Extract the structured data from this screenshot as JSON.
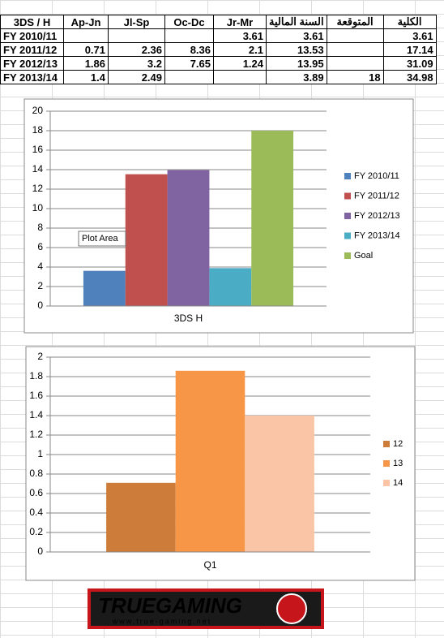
{
  "table": {
    "header": [
      "3DS / H",
      "Ap-Jn",
      "Jl-Sp",
      "Oc-Dc",
      "Jr-Mr",
      "السنة المالية",
      "المتوقعة",
      "الكلية"
    ],
    "rows": [
      [
        "FY 2010/11",
        null,
        null,
        null,
        3.61,
        3.61,
        null,
        3.61
      ],
      [
        "FY 2011/12",
        0.71,
        2.36,
        8.36,
        2.1,
        13.53,
        null,
        17.14
      ],
      [
        "FY 2012/13",
        1.86,
        3.2,
        7.65,
        1.24,
        13.95,
        null,
        31.09
      ],
      [
        "FY 2013/14",
        1.4,
        2.49,
        null,
        null,
        3.89,
        18,
        34.98
      ]
    ]
  },
  "chart_data": [
    {
      "type": "bar",
      "categories": [
        "3DS H"
      ],
      "series": [
        {
          "name": "FY 2010/11",
          "color": "#4f81bd",
          "values": [
            3.61
          ]
        },
        {
          "name": "FY 2011/12",
          "color": "#c0504d",
          "values": [
            13.53
          ]
        },
        {
          "name": "FY 2012/13",
          "color": "#8064a2",
          "values": [
            13.95
          ]
        },
        {
          "name": "FY 2013/14",
          "color": "#4bacc6",
          "values": [
            3.89
          ]
        },
        {
          "name": "Goal",
          "color": "#9bbb59",
          "values": [
            18
          ]
        }
      ],
      "ylim": [
        0,
        20
      ],
      "yticks": [
        0,
        2,
        4,
        6,
        8,
        10,
        12,
        14,
        16,
        18,
        20
      ],
      "grid": true,
      "legend": "right"
    },
    {
      "type": "bar",
      "categories": [
        "Q1"
      ],
      "series": [
        {
          "name": "12",
          "color": "#cd7c3a",
          "values": [
            0.71
          ]
        },
        {
          "name": "13",
          "color": "#f79646",
          "values": [
            1.86
          ]
        },
        {
          "name": "14",
          "color": "#fac4a6",
          "values": [
            1.4
          ]
        }
      ],
      "ylim": [
        0,
        2
      ],
      "yticks": [
        0,
        0.2,
        0.4,
        0.6,
        0.8,
        1,
        1.2,
        1.4,
        1.6,
        1.8,
        2
      ],
      "grid": true,
      "legend": "right"
    }
  ],
  "tooltip": "Plot Area",
  "logo": {
    "name": "TRUEGAMING",
    "url": "www.true-gaming.net"
  }
}
